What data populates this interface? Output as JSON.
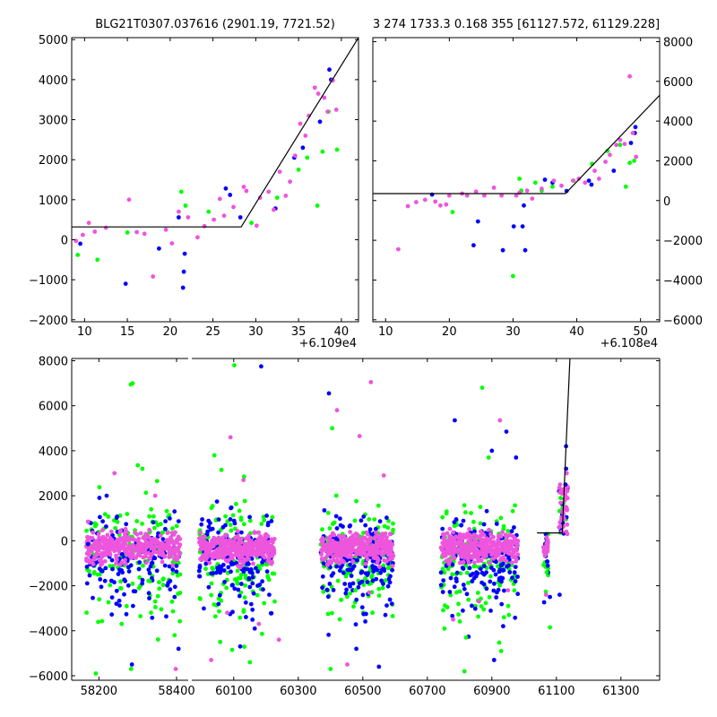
{
  "colors": {
    "green": "#00ff00",
    "blue": "#0000ff",
    "magenta": "#ee55dd",
    "fit": "#000000"
  },
  "chart_data": [
    {
      "type": "scatter",
      "name": "top-left",
      "title": "BLG21T0307.037616 (2901.19, 7721.52)",
      "offset_label": "+6.109e4",
      "xlim": [
        8.5,
        42
      ],
      "ylim": [
        -2050,
        5050
      ],
      "xticks": [
        10,
        15,
        20,
        25,
        30,
        35,
        40
      ],
      "yticks": [
        -2000,
        -1000,
        0,
        1000,
        2000,
        3000,
        4000,
        5000
      ],
      "fit_line": [
        [
          8.5,
          320
        ],
        [
          28.3,
          320
        ],
        [
          42,
          5050
        ]
      ],
      "series": [
        {
          "name": "green",
          "color": "green",
          "points": [
            [
              9.2,
              -380
            ],
            [
              11.5,
              -500
            ],
            [
              15,
              180
            ],
            [
              21.3,
              1200
            ],
            [
              21.8,
              850
            ],
            [
              24.5,
              700
            ],
            [
              29.5,
              420
            ],
            [
              32.5,
              1050
            ],
            [
              35,
              1750
            ],
            [
              36,
              2050
            ],
            [
              37.2,
              850
            ],
            [
              37.8,
              2200
            ],
            [
              38.5,
              3200
            ],
            [
              39.5,
              2250
            ]
          ]
        },
        {
          "name": "blue",
          "color": "blue",
          "points": [
            [
              9.5,
              -100
            ],
            [
              14.8,
              -1100
            ],
            [
              18.7,
              -220
            ],
            [
              21,
              560
            ],
            [
              21.7,
              -350
            ],
            [
              21.6,
              -800
            ],
            [
              21.5,
              -1200
            ],
            [
              26.5,
              1280
            ],
            [
              27,
              1120
            ],
            [
              28.2,
              560
            ],
            [
              32.3,
              780
            ],
            [
              34.5,
              2050
            ],
            [
              35.5,
              2300
            ],
            [
              37.5,
              2950
            ],
            [
              38.6,
              4250
            ],
            [
              38.8,
              4000
            ]
          ]
        },
        {
          "name": "magenta",
          "color": "magenta",
          "points": [
            [
              9,
              -30
            ],
            [
              9.8,
              120
            ],
            [
              10.5,
              420
            ],
            [
              11.2,
              200
            ],
            [
              12.5,
              300
            ],
            [
              15.2,
              1000
            ],
            [
              16.1,
              190
            ],
            [
              17,
              150
            ],
            [
              18,
              -920
            ],
            [
              19.5,
              250
            ],
            [
              20.2,
              -90
            ],
            [
              21,
              700
            ],
            [
              22.1,
              560
            ],
            [
              23.2,
              60
            ],
            [
              24,
              340
            ],
            [
              25.1,
              500
            ],
            [
              25.8,
              1020
            ],
            [
              26.3,
              600
            ],
            [
              27.4,
              820
            ],
            [
              28.6,
              1320
            ],
            [
              28.9,
              1220
            ],
            [
              30.1,
              350
            ],
            [
              30.5,
              1050
            ],
            [
              31.5,
              1200
            ],
            [
              32.1,
              750
            ],
            [
              32.8,
              1700
            ],
            [
              33.5,
              1100
            ],
            [
              34,
              1450
            ],
            [
              34.6,
              2100
            ],
            [
              35.2,
              2900
            ],
            [
              35.8,
              2600
            ],
            [
              36.2,
              3100
            ],
            [
              36.9,
              3800
            ],
            [
              37.3,
              3650
            ],
            [
              38,
              3550
            ],
            [
              38.4,
              3200
            ],
            [
              39,
              3980
            ],
            [
              39.4,
              3250
            ]
          ]
        }
      ]
    },
    {
      "type": "scatter",
      "name": "top-right",
      "title": "3 274 1733.3 0.168 355 [61127.572, 61129.228]",
      "offset_label": "+6.108e4",
      "xlim": [
        8,
        53
      ],
      "ylim": [
        -6100,
        8200
      ],
      "xticks": [
        10,
        20,
        30,
        40,
        50
      ],
      "yticks": [
        -6000,
        -4000,
        -2000,
        0,
        2000,
        4000,
        6000,
        8000
      ],
      "fit_line": [
        [
          8,
          350
        ],
        [
          38.2,
          350
        ],
        [
          53,
          5300
        ]
      ],
      "series": [
        {
          "name": "green",
          "color": "green",
          "points": [
            [
              20.5,
              -580
            ],
            [
              30,
              -3800
            ],
            [
              31,
              1100
            ],
            [
              31.3,
              500
            ],
            [
              33.5,
              900
            ],
            [
              34.5,
              500
            ],
            [
              36.2,
              700
            ],
            [
              39.5,
              1000
            ],
            [
              42.4,
              1850
            ],
            [
              44.8,
              2500
            ],
            [
              46.8,
              2800
            ],
            [
              47.7,
              700
            ],
            [
              48.3,
              1900
            ],
            [
              49,
              2000
            ]
          ]
        },
        {
          "name": "blue",
          "color": "blue",
          "points": [
            [
              17.3,
              300
            ],
            [
              23.8,
              -2250
            ],
            [
              24.5,
              -1050
            ],
            [
              28.4,
              -2500
            ],
            [
              30.1,
              -1300
            ],
            [
              31.5,
              -1300
            ],
            [
              31.7,
              -250
            ],
            [
              31.9,
              -2500
            ],
            [
              35,
              1050
            ],
            [
              36.2,
              900
            ],
            [
              38.4,
              480
            ],
            [
              41.9,
              1000
            ],
            [
              42.3,
              800
            ],
            [
              45.8,
              1500
            ],
            [
              48.5,
              2900
            ],
            [
              49.2,
              3700
            ],
            [
              49.1,
              3400
            ]
          ]
        },
        {
          "name": "magenta",
          "color": "magenta",
          "points": [
            [
              12,
              -2450
            ],
            [
              13.5,
              -280
            ],
            [
              14.8,
              -80
            ],
            [
              16.2,
              40
            ],
            [
              17.8,
              -50
            ],
            [
              18.6,
              -250
            ],
            [
              19.5,
              -200
            ],
            [
              20,
              250
            ],
            [
              22,
              350
            ],
            [
              22.8,
              250
            ],
            [
              24.2,
              450
            ],
            [
              25.5,
              250
            ],
            [
              27,
              650
            ],
            [
              28.2,
              250
            ],
            [
              30.5,
              250
            ],
            [
              31,
              400
            ],
            [
              32.2,
              500
            ],
            [
              33,
              100
            ],
            [
              34.5,
              600
            ],
            [
              36.4,
              1000
            ],
            [
              37.6,
              750
            ],
            [
              39.4,
              1000
            ],
            [
              40.3,
              1100
            ],
            [
              41.3,
              900
            ],
            [
              42.8,
              1500
            ],
            [
              43.5,
              1100
            ],
            [
              44.5,
              1950
            ],
            [
              45.2,
              2300
            ],
            [
              46.2,
              2800
            ],
            [
              46.8,
              3050
            ],
            [
              47.5,
              2850
            ],
            [
              48.3,
              6250
            ],
            [
              48.8,
              3400
            ],
            [
              49.3,
              2200
            ]
          ]
        }
      ]
    },
    {
      "type": "scatter",
      "name": "bottom",
      "xlim_left": [
        58130,
        58430
      ],
      "xlim_right": [
        59970,
        61420
      ],
      "ylim": [
        -6200,
        8100
      ],
      "xticks_left": [
        58200,
        58400
      ],
      "xticks_right": [
        60100,
        60300,
        60500,
        60700,
        60900,
        61100,
        61300
      ],
      "yticks": [
        -6000,
        -4000,
        -2000,
        0,
        2000,
        4000,
        6000,
        8000
      ],
      "fit_line": [
        [
          61040,
          350
        ],
        [
          61118,
          350
        ],
        [
          61142,
          8100
        ]
      ],
      "clusters": [
        {
          "x0": 58168,
          "x1": 58410
        },
        {
          "x0": 59993,
          "x1": 60227
        },
        {
          "x0": 60370,
          "x1": 60595
        },
        {
          "x0": 60742,
          "x1": 60982
        },
        {
          "x0": 61060,
          "x1": 61075
        },
        {
          "x0": 61108,
          "x1": 61136
        }
      ],
      "outliers": [
        {
          "color": "green",
          "points": [
            [
              58282,
              6950
            ],
            [
              58287,
              7000
            ],
            [
              58300,
              3350
            ],
            [
              58312,
              3200
            ],
            [
              58350,
              2650
            ],
            [
              58331,
              -1800
            ],
            [
              58345,
              -2700
            ],
            [
              58307,
              -3350
            ],
            [
              58283,
              -5700
            ],
            [
              58192,
              -5900
            ],
            [
              58395,
              -4200
            ],
            [
              60102,
              7800
            ],
            [
              60040,
              3800
            ],
            [
              60062,
              3150
            ],
            [
              60132,
              2850
            ],
            [
              60058,
              -4500
            ],
            [
              60095,
              -4850
            ],
            [
              60150,
              -5400
            ],
            [
              60405,
              5000
            ],
            [
              60400,
              -5700
            ],
            [
              60477,
              -2200
            ],
            [
              60530,
              -3200
            ],
            [
              60870,
              6800
            ],
            [
              60890,
              3700
            ],
            [
              60820,
              -4300
            ],
            [
              60815,
              -5800
            ],
            [
              60929,
              -4900
            ],
            [
              61080,
              -3850
            ],
            [
              61070,
              -1400
            ]
          ]
        },
        {
          "color": "blue",
          "points": [
            [
              58172,
              -150
            ],
            [
              58220,
              2000
            ],
            [
              58260,
              -600
            ],
            [
              58285,
              -5500
            ],
            [
              58405,
              -4800
            ],
            [
              58395,
              -2500
            ],
            [
              60185,
              7750
            ],
            [
              60210,
              -2400
            ],
            [
              60120,
              -4700
            ],
            [
              60165,
              -3900
            ],
            [
              60395,
              6550
            ],
            [
              60480,
              -4800
            ],
            [
              60550,
              -5600
            ],
            [
              60570,
              -3300
            ],
            [
              60590,
              -2800
            ],
            [
              60785,
              5350
            ],
            [
              60900,
              4000
            ],
            [
              60945,
              4850
            ],
            [
              60975,
              3700
            ],
            [
              60907,
              -5300
            ],
            [
              60935,
              -3800
            ],
            [
              61080,
              -2500
            ],
            [
              61110,
              -2400
            ],
            [
              61130,
              4200
            ],
            [
              61130,
              3200
            ],
            [
              61128,
              2500
            ],
            [
              61120,
              800
            ]
          ]
        },
        {
          "color": "magenta",
          "points": [
            [
              58240,
              3000
            ],
            [
              58345,
              2000
            ],
            [
              58398,
              -5700
            ],
            [
              58172,
              850
            ],
            [
              60090,
              4600
            ],
            [
              60130,
              2700
            ],
            [
              60080,
              -3200
            ],
            [
              60030,
              -5300
            ],
            [
              60178,
              -3700
            ],
            [
              60240,
              -4400
            ],
            [
              60420,
              5800
            ],
            [
              60525,
              7050
            ],
            [
              60490,
              4650
            ],
            [
              60565,
              2900
            ],
            [
              60452,
              -5500
            ],
            [
              60520,
              -2300
            ],
            [
              60925,
              5350
            ],
            [
              60780,
              -3500
            ],
            [
              60860,
              -2700
            ],
            [
              60950,
              -2200
            ],
            [
              61068,
              -2400
            ],
            [
              61108,
              600
            ],
            [
              61115,
              900
            ],
            [
              61122,
              1200
            ],
            [
              61130,
              1500
            ],
            [
              61132,
              3000
            ],
            [
              61134,
              2200
            ],
            [
              61126,
              1800
            ],
            [
              61120,
              1300
            ]
          ]
        }
      ]
    }
  ]
}
